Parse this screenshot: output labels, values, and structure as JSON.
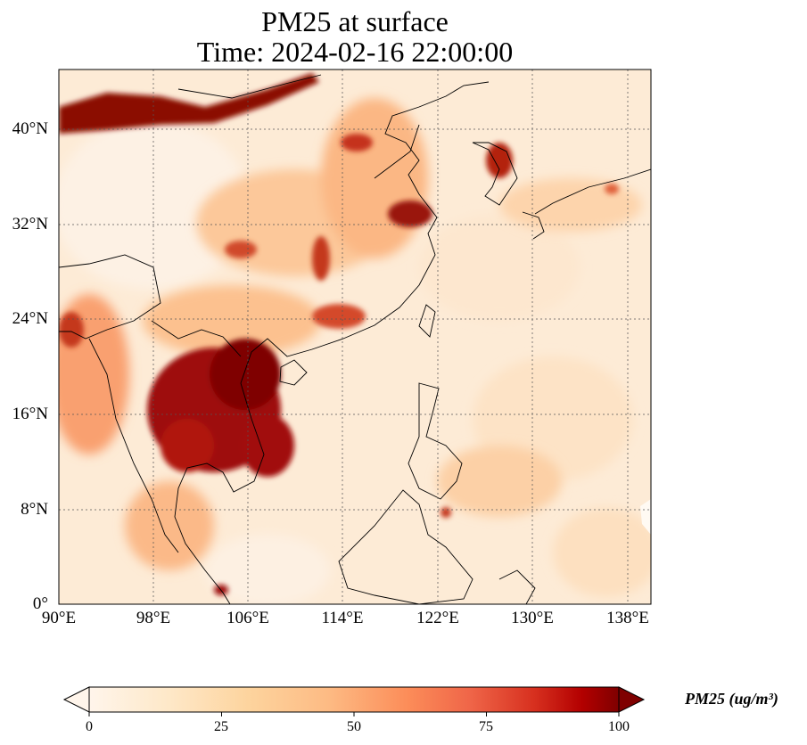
{
  "title": {
    "line1": "PM25 at surface",
    "line2": "Time: 2024-02-16 22:00:00"
  },
  "map": {
    "extent": {
      "lon_min": 90,
      "lon_max": 140,
      "lat_min": 0,
      "lat_max": 45
    },
    "lat_ticks": [
      {
        "value": 40,
        "label": "40°N"
      },
      {
        "value": 32,
        "label": "32°N"
      },
      {
        "value": 24,
        "label": "24°N"
      },
      {
        "value": 16,
        "label": "16°N"
      },
      {
        "value": 8,
        "label": "8°N"
      },
      {
        "value": 0,
        "label": "0°"
      }
    ],
    "lon_ticks": [
      {
        "value": 90,
        "label": "90°E"
      },
      {
        "value": 98,
        "label": "98°E"
      },
      {
        "value": 106,
        "label": "106°E"
      },
      {
        "value": 114,
        "label": "114°E"
      },
      {
        "value": 122,
        "label": "122°E"
      },
      {
        "value": 130,
        "label": "130°E"
      },
      {
        "value": 138,
        "label": "138°E"
      }
    ],
    "gridlines": true,
    "background_color": "#fdebd6"
  },
  "colorbar": {
    "label": "PM25 (ug/m³)",
    "ticks": [
      {
        "value": 0,
        "label": "0"
      },
      {
        "value": 25,
        "label": "25"
      },
      {
        "value": 50,
        "label": "50"
      },
      {
        "value": 75,
        "label": "75"
      },
      {
        "value": 100,
        "label": "100"
      }
    ],
    "range": [
      0,
      100
    ],
    "extend": "both",
    "colors": [
      "#fff5eb",
      "#fdd49e",
      "#fdbb84",
      "#fc8d59",
      "#ef6548",
      "#d7301f",
      "#b30000",
      "#7f0000"
    ]
  }
}
